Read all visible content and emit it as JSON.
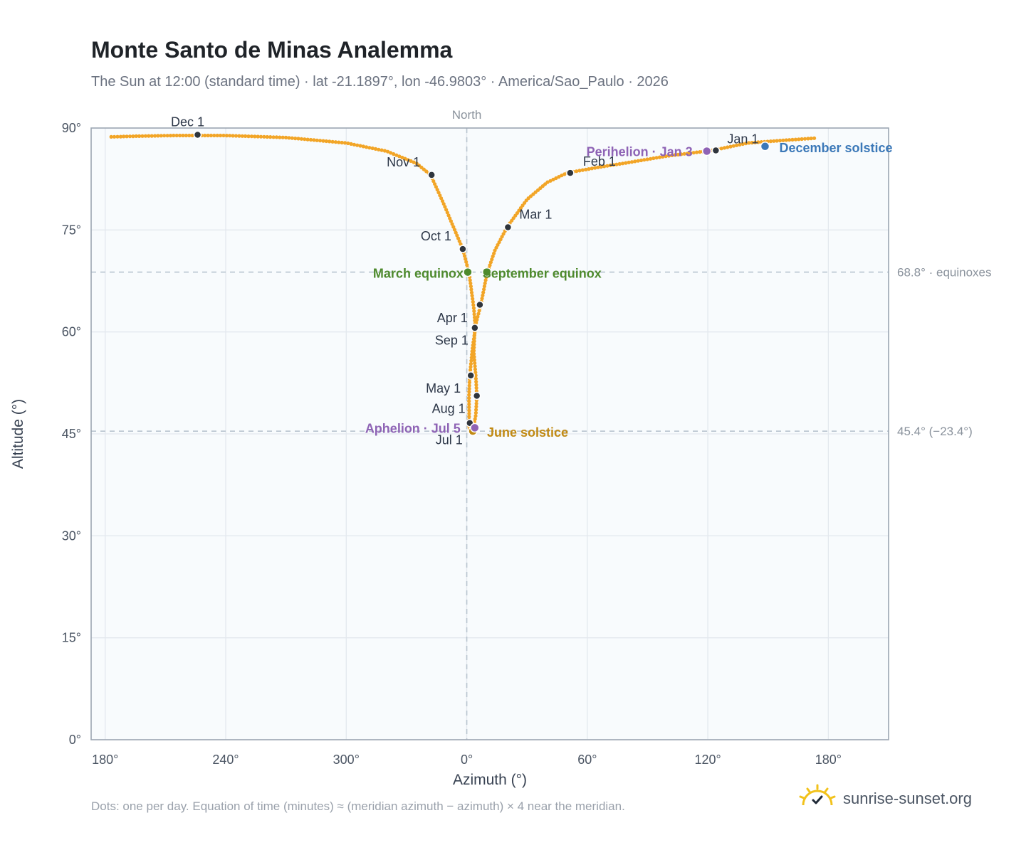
{
  "title": "Monte Santo de Minas Analemma",
  "subtitle": "The Sun at 12:00 (standard time) · lat -21.1897°, lon -46.9803° · America/Sao_Paulo · 2026",
  "footnote": "Dots: one per day. Equation of time (minutes) ≈ (meridian azimuth − azimuth) × 4 near the meridian.",
  "brand": {
    "name": "sunrise-sunset.org",
    "icon": "sun-logo-icon"
  },
  "colors": {
    "curve": "#f2a527",
    "month_marker": "#2f353d",
    "equinox": "#4e8a2d",
    "june_solstice": "#c18a14",
    "december_solstice": "#3b78b8",
    "apsis": "#8e63b5",
    "reference_line": "#b8c4cf",
    "plot_bg": "#f8fbfd",
    "frame": "#9ba6b2",
    "grid": "#e3e8ee"
  },
  "chart_data": {
    "type": "scatter",
    "xlabel": "Azimuth (°)",
    "ylabel": "Altitude (°)",
    "x_ticks": [
      "180°",
      "240°",
      "300°",
      "0°",
      "60°",
      "120°",
      "180°"
    ],
    "y_ticks": [
      "0°",
      "15°",
      "30°",
      "45°",
      "60°",
      "75°",
      "90°"
    ],
    "xlim": [
      -187,
      210
    ],
    "ylim": [
      0,
      90
    ],
    "grid": true,
    "meridian_label": "North",
    "series": [
      {
        "points": [
          [
            173,
            88.5
          ],
          [
            158,
            88.2
          ],
          [
            140,
            87.8
          ],
          [
            122,
            86.7
          ],
          [
            100,
            85.9
          ],
          [
            80,
            84.9
          ],
          [
            65,
            84.2
          ],
          [
            50,
            83.4
          ],
          [
            40,
            82.0
          ],
          [
            30,
            79.5
          ],
          [
            20,
            75.4
          ],
          [
            14,
            72.0
          ],
          [
            10,
            68.5
          ],
          [
            7,
            64.0
          ],
          [
            4,
            60.6
          ],
          [
            3.5,
            57.0
          ],
          [
            4.5,
            53.5
          ],
          [
            5,
            50.6
          ],
          [
            4.5,
            47.8
          ],
          [
            3.5,
            46.2
          ],
          [
            2.2,
            45.4
          ],
          [
            1,
            45.9
          ],
          [
            1.2,
            46.6
          ],
          [
            1.2,
            47.8
          ],
          [
            1.1,
            50.6
          ],
          [
            1.5,
            53.5
          ],
          [
            2.8,
            57.5
          ],
          [
            4.3,
            60.6
          ],
          [
            3.5,
            63.5
          ],
          [
            1.2,
            68.6
          ],
          [
            -2,
            72.2
          ],
          [
            -6,
            75.0
          ],
          [
            -12,
            79.2
          ],
          [
            -18,
            83.1
          ],
          [
            -25,
            84.8
          ],
          [
            -40,
            86.6
          ],
          [
            -60,
            87.8
          ],
          [
            -90,
            88.6
          ],
          [
            -120,
            88.9
          ],
          [
            -146,
            88.9
          ],
          [
            -165,
            88.8
          ],
          [
            -177,
            88.7
          ]
        ]
      }
    ],
    "month_markers": [
      {
        "label": "Jan 1",
        "az": 124,
        "alt": 86.7
      },
      {
        "label": "Feb 1",
        "az": 51.5,
        "alt": 83.4
      },
      {
        "label": "Mar 1",
        "az": 20.5,
        "alt": 75.4
      },
      {
        "label": "Apr 1",
        "az": 4,
        "alt": 60.6
      },
      {
        "label": "May 1",
        "az": 2,
        "alt": 53.6
      },
      {
        "label": "Jul 1",
        "az": 1.5,
        "alt": 46.6
      },
      {
        "label": "Aug 1",
        "az": 5,
        "alt": 50.6
      },
      {
        "label": "Sep 1",
        "az": 6.5,
        "alt": 64.0
      },
      {
        "label": "Oct 1",
        "az": -2,
        "alt": 72.2
      },
      {
        "label": "Nov 1",
        "az": -17.5,
        "alt": 83.1
      },
      {
        "label": "Dec 1",
        "az": -134,
        "alt": 89.0
      }
    ],
    "events": [
      {
        "label": "March equinox",
        "az": 0.5,
        "alt": 68.8,
        "color": "#4e8a2d"
      },
      {
        "label": "September equinox",
        "az": 10,
        "alt": 68.8,
        "color": "#4e8a2d"
      },
      {
        "label": "June solstice",
        "az": 3,
        "alt": 45.4,
        "color": "#c18a14"
      },
      {
        "label": "December solstice",
        "az": 148.5,
        "alt": 87.3,
        "color": "#3b78b8"
      },
      {
        "label": "Perihelion · Jan 3",
        "az": 119.5,
        "alt": 86.6,
        "color": "#8e63b5"
      },
      {
        "label": "Aphelion · Jul 5",
        "az": 4,
        "alt": 45.9,
        "color": "#8e63b5"
      }
    ],
    "reference_lines": [
      {
        "alt": 68.8,
        "label": "68.8° · equinoxes"
      },
      {
        "alt": 45.4,
        "label": "45.4° (−23.4°)"
      }
    ]
  }
}
